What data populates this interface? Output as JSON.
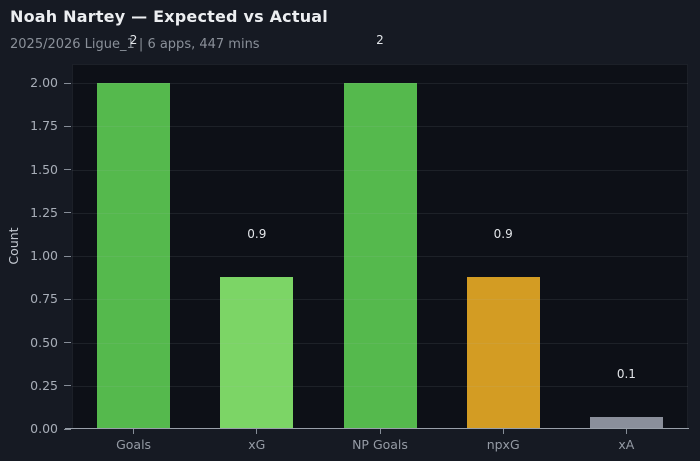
{
  "header": {
    "title": "Noah Nartey — Expected vs Actual",
    "subtitle": "2025/2026 Ligue_1 | 6 apps, 447 mins"
  },
  "colors": {
    "page_background": "#161a23",
    "plot_background": "#0d1017",
    "goals_green": "#55b94d",
    "xg_light_green": "#7cd566",
    "npxg_orange": "#d39c23",
    "xa_gray": "#8a8f9b",
    "axis_spine": "#99a0aa",
    "tick_label": "#a8aeb8",
    "title_text": "#eceef1",
    "subtitle_text": "#8a9099"
  },
  "chart_data": {
    "type": "bar",
    "title": "Noah Nartey — Expected vs Actual",
    "subtitle": "2025/2026 Ligue_1 | 6 apps, 447 mins",
    "categories": [
      "Goals",
      "xG",
      "NP Goals",
      "npxG",
      "xA"
    ],
    "values": [
      2,
      0.88,
      2,
      0.88,
      0.07
    ],
    "value_labels": [
      "2",
      "0.9",
      "2",
      "0.9",
      "0.1"
    ],
    "bar_colors": [
      "#55b94d",
      "#7cd566",
      "#55b94d",
      "#d39c23",
      "#8a8f9b"
    ],
    "xlabel": "",
    "ylabel": "Count",
    "ylim": [
      0,
      2.11
    ],
    "yticks": [
      0,
      0.25,
      0.5,
      0.75,
      1,
      1.25,
      1.5,
      1.75,
      2
    ],
    "ytick_labels": [
      "0.00",
      "0.25",
      "0.50",
      "0.75",
      "1.00",
      "1.25",
      "1.50",
      "1.75",
      "2.00"
    ],
    "grid": "horizontal",
    "legend": "none"
  }
}
